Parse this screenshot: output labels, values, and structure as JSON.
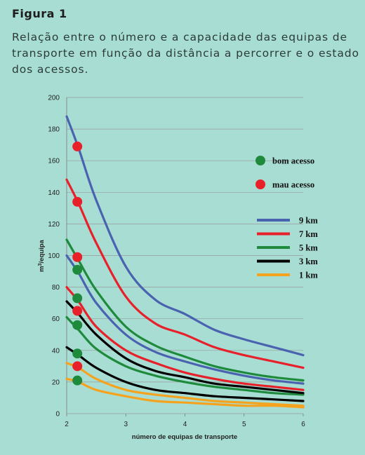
{
  "figure": {
    "label": "Figura 1",
    "caption": "Relação entre o número e a capacidade das equipas de transporte em função da distância a percorrer e o estado dos acessos."
  },
  "chart_data": {
    "type": "line",
    "xlabel": "número de equipas de transporte",
    "ylabel_main": "m",
    "ylabel_sup": "3",
    "ylabel_rest": "/equipa",
    "xlim": [
      2,
      6
    ],
    "ylim": [
      0,
      200
    ],
    "x_ticks": [
      "2",
      "3",
      "4",
      "5",
      "6"
    ],
    "y_ticks": [
      "0",
      "20",
      "40",
      "60",
      "80",
      "100",
      "120",
      "140",
      "160",
      "180",
      "200"
    ],
    "grid": true,
    "legend_position": "right",
    "marker_legend": [
      {
        "label": "bom acesso",
        "color": "#1e8a3c"
      },
      {
        "label": "mau acesso",
        "color": "#e8202a"
      }
    ],
    "series": [
      {
        "name": "9 km",
        "color": "#4a63b0",
        "curves": [
          {
            "points": [
              [
                2,
                188
              ],
              [
                2.2,
                168
              ],
              [
                2.5,
                135
              ],
              [
                3,
                93
              ],
              [
                3.5,
                72
              ],
              [
                4,
                63
              ],
              [
                4.5,
                53
              ],
              [
                5,
                47
              ],
              [
                5.5,
                42
              ],
              [
                6,
                37
              ]
            ]
          },
          {
            "points": [
              [
                2,
                100
              ],
              [
                2.2,
                89
              ],
              [
                2.5,
                70
              ],
              [
                3,
                50
              ],
              [
                3.5,
                39
              ],
              [
                4,
                33
              ],
              [
                4.5,
                28
              ],
              [
                5,
                24
              ],
              [
                5.5,
                21
              ],
              [
                6,
                19
              ]
            ]
          }
        ]
      },
      {
        "name": "7 km",
        "color": "#e8202a",
        "curves": [
          {
            "points": [
              [
                2,
                148
              ],
              [
                2.2,
                133
              ],
              [
                2.5,
                108
              ],
              [
                3,
                74
              ],
              [
                3.5,
                57
              ],
              [
                4,
                50
              ],
              [
                4.5,
                42
              ],
              [
                5,
                37
              ],
              [
                5.5,
                33
              ],
              [
                6,
                29
              ]
            ]
          },
          {
            "points": [
              [
                2,
                80
              ],
              [
                2.2,
                71
              ],
              [
                2.5,
                55
              ],
              [
                3,
                40
              ],
              [
                3.5,
                32
              ],
              [
                4,
                26
              ],
              [
                4.5,
                22
              ],
              [
                5,
                19
              ],
              [
                5.5,
                17
              ],
              [
                6,
                15
              ]
            ]
          }
        ]
      },
      {
        "name": "5 km",
        "color": "#1e8a3c",
        "curves": [
          {
            "points": [
              [
                2,
                110
              ],
              [
                2.2,
                97
              ],
              [
                2.5,
                78
              ],
              [
                3,
                55
              ],
              [
                3.5,
                43
              ],
              [
                4,
                36
              ],
              [
                4.5,
                30
              ],
              [
                5,
                26
              ],
              [
                5.5,
                23
              ],
              [
                6,
                21
              ]
            ]
          },
          {
            "points": [
              [
                2,
                61
              ],
              [
                2.2,
                53
              ],
              [
                2.5,
                41
              ],
              [
                3,
                30
              ],
              [
                3.5,
                24
              ],
              [
                4,
                20
              ],
              [
                4.5,
                17
              ],
              [
                5,
                15
              ],
              [
                5.5,
                13
              ],
              [
                6,
                12
              ]
            ]
          }
        ]
      },
      {
        "name": "3 km",
        "color": "#000000",
        "curves": [
          {
            "points": [
              [
                2,
                71
              ],
              [
                2.2,
                63
              ],
              [
                2.5,
                50
              ],
              [
                3,
                35
              ],
              [
                3.5,
                27
              ],
              [
                4,
                23
              ],
              [
                4.5,
                19
              ],
              [
                5,
                17
              ],
              [
                5.5,
                15
              ],
              [
                6,
                13
              ]
            ]
          },
          {
            "points": [
              [
                2,
                42
              ],
              [
                2.2,
                37
              ],
              [
                2.5,
                29
              ],
              [
                3,
                20
              ],
              [
                3.5,
                15
              ],
              [
                4,
                13
              ],
              [
                4.5,
                11
              ],
              [
                5,
                10
              ],
              [
                5.5,
                9
              ],
              [
                6,
                8
              ]
            ]
          }
        ]
      },
      {
        "name": "1 km",
        "color": "#f5a31f",
        "curves": [
          {
            "points": [
              [
                2,
                32
              ],
              [
                2.2,
                29
              ],
              [
                2.5,
                22
              ],
              [
                3,
                15
              ],
              [
                3.5,
                12
              ],
              [
                4,
                10
              ],
              [
                4.5,
                8
              ],
              [
                5,
                7
              ],
              [
                5.5,
                6
              ],
              [
                6,
                5
              ]
            ]
          },
          {
            "points": [
              [
                2,
                22
              ],
              [
                2.2,
                20
              ],
              [
                2.5,
                15
              ],
              [
                3,
                11
              ],
              [
                3.5,
                8
              ],
              [
                4,
                7
              ],
              [
                4.5,
                6
              ],
              [
                5,
                5
              ],
              [
                5.5,
                5
              ],
              [
                6,
                4
              ]
            ]
          }
        ]
      }
    ],
    "markers": [
      {
        "x": 2.18,
        "y": 169,
        "access": "mau acesso",
        "color": "#e8202a"
      },
      {
        "x": 2.18,
        "y": 134,
        "access": "mau acesso",
        "color": "#e8202a"
      },
      {
        "x": 2.18,
        "y": 99,
        "access": "mau acesso",
        "color": "#e8202a"
      },
      {
        "x": 2.18,
        "y": 91,
        "access": "bom acesso",
        "color": "#1e8a3c"
      },
      {
        "x": 2.18,
        "y": 73,
        "access": "bom acesso",
        "color": "#1e8a3c"
      },
      {
        "x": 2.18,
        "y": 65,
        "access": "mau acesso",
        "color": "#e8202a"
      },
      {
        "x": 2.18,
        "y": 56,
        "access": "bom acesso",
        "color": "#1e8a3c"
      },
      {
        "x": 2.18,
        "y": 38,
        "access": "bom acesso",
        "color": "#1e8a3c"
      },
      {
        "x": 2.18,
        "y": 30,
        "access": "mau acesso",
        "color": "#e8202a"
      },
      {
        "x": 2.18,
        "y": 21,
        "access": "bom acesso",
        "color": "#1e8a3c"
      }
    ]
  }
}
